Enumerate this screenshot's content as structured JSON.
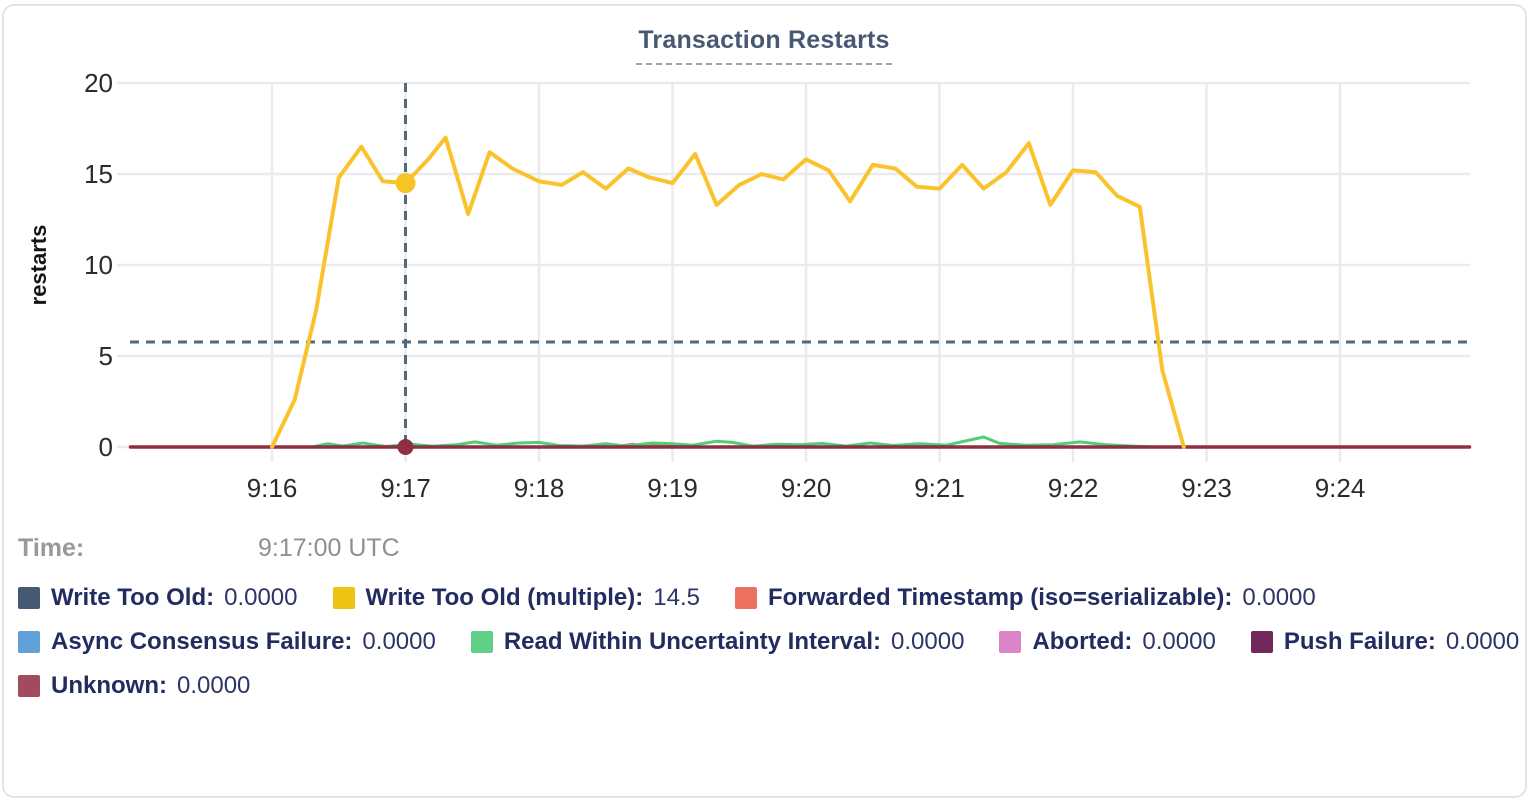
{
  "title": "Transaction Restarts",
  "time_row": {
    "label": "Time:",
    "value": "9:17:00 UTC"
  },
  "legend": {
    "items": [
      {
        "label": "Write Too Old:",
        "value": "0.0000",
        "color": "#475872"
      },
      {
        "label": "Write Too Old (multiple):",
        "value": "14.5",
        "color": "#f0c214"
      },
      {
        "label": "Forwarded Timestamp (iso=serializable):",
        "value": "0.0000",
        "color": "#ed7160"
      },
      {
        "label": "Async Consensus Failure:",
        "value": "0.0000",
        "color": "#61a0d9"
      },
      {
        "label": "Read Within Uncertainty Interval:",
        "value": "0.0000",
        "color": "#60d088"
      },
      {
        "label": "Aborted:",
        "value": "0.0000",
        "color": "#db84c8"
      },
      {
        "label": "Push Failure:",
        "value": "0.0000",
        "color": "#71295c"
      },
      {
        "label": "Unknown:",
        "value": "0.0000",
        "color": "#a34a5e"
      }
    ]
  },
  "chart_data": {
    "type": "line",
    "title": "Transaction Restarts",
    "ylabel": "restarts",
    "ylim": [
      0,
      20
    ],
    "yticks": [
      {
        "v": 20,
        "label": "20"
      },
      {
        "v": 15,
        "label": "15"
      },
      {
        "v": 10,
        "label": "10"
      },
      {
        "v": 5,
        "label": "5"
      },
      {
        "v": 0,
        "label": "0"
      }
    ],
    "xticks": [
      {
        "t": 16,
        "label": "9:16"
      },
      {
        "t": 17,
        "label": "9:17"
      },
      {
        "t": 18,
        "label": "9:18"
      },
      {
        "t": 19,
        "label": "9:19"
      },
      {
        "t": 20,
        "label": "9:20"
      },
      {
        "t": 21,
        "label": "9:21"
      },
      {
        "t": 22,
        "label": "9:22"
      },
      {
        "t": 23,
        "label": "9:23"
      },
      {
        "t": 24,
        "label": "9:24"
      }
    ],
    "x_domain_minutes": [
      14.94,
      24.97
    ],
    "grid": true,
    "legend_position": "bottom",
    "hover": {
      "time": "9:17:00 UTC",
      "t": 17.0,
      "crosshair_color": "#4e6a80",
      "h_line_value": 5.77,
      "points": [
        {
          "series": "Write Too Old (multiple)",
          "v": 14.5,
          "color": "#f5c523"
        },
        {
          "series": "Unknown",
          "v": 0,
          "color": "#8e2f42"
        }
      ]
    },
    "series": [
      {
        "name": "Write Too Old",
        "color": "#475872",
        "points": [
          [
            14.94,
            0
          ],
          [
            24.97,
            0
          ]
        ]
      },
      {
        "name": "Async Consensus Failure",
        "color": "#61a0d9",
        "points": [
          [
            14.94,
            0
          ],
          [
            24.97,
            0
          ]
        ]
      },
      {
        "name": "Aborted",
        "color": "#db84c8",
        "points": [
          [
            14.94,
            0
          ],
          [
            24.97,
            0
          ]
        ]
      },
      {
        "name": "Push Failure",
        "color": "#71295c",
        "points": [
          [
            14.94,
            0
          ],
          [
            24.97,
            0
          ]
        ]
      },
      {
        "name": "Forwarded Timestamp (iso=serializable)",
        "color": "#ed7160",
        "points": [
          [
            14.94,
            0
          ],
          [
            18.55,
            0
          ],
          [
            18.7,
            0.15
          ],
          [
            18.82,
            0.04
          ],
          [
            18.95,
            0.12
          ],
          [
            19.1,
            0
          ],
          [
            24.97,
            0
          ]
        ]
      },
      {
        "name": "Read Within Uncertainty Interval",
        "color": "#4fce78",
        "points": [
          [
            14.94,
            0
          ],
          [
            16.3,
            0
          ],
          [
            16.42,
            0.18
          ],
          [
            16.53,
            0.05
          ],
          [
            16.68,
            0.22
          ],
          [
            16.85,
            0.03
          ],
          [
            17.05,
            0.15
          ],
          [
            17.2,
            0.04
          ],
          [
            17.38,
            0.12
          ],
          [
            17.52,
            0.28
          ],
          [
            17.68,
            0.1
          ],
          [
            17.85,
            0.22
          ],
          [
            18.0,
            0.25
          ],
          [
            18.15,
            0.08
          ],
          [
            18.33,
            0.05
          ],
          [
            18.5,
            0.18
          ],
          [
            18.65,
            0.05
          ],
          [
            18.85,
            0.22
          ],
          [
            19.0,
            0.18
          ],
          [
            19.15,
            0.1
          ],
          [
            19.33,
            0.32
          ],
          [
            19.45,
            0.25
          ],
          [
            19.6,
            0.05
          ],
          [
            19.78,
            0.15
          ],
          [
            19.95,
            0.12
          ],
          [
            20.12,
            0.2
          ],
          [
            20.3,
            0.05
          ],
          [
            20.48,
            0.22
          ],
          [
            20.65,
            0.08
          ],
          [
            20.85,
            0.18
          ],
          [
            21.05,
            0.1
          ],
          [
            21.33,
            0.55
          ],
          [
            21.45,
            0.2
          ],
          [
            21.65,
            0.1
          ],
          [
            21.85,
            0.12
          ],
          [
            22.05,
            0.28
          ],
          [
            22.25,
            0.12
          ],
          [
            22.45,
            0.05
          ],
          [
            22.6,
            0
          ],
          [
            24.97,
            0
          ]
        ]
      },
      {
        "name": "Unknown",
        "color": "#8e2f42",
        "points": [
          [
            14.94,
            0
          ],
          [
            24.97,
            0
          ]
        ]
      },
      {
        "name": "Write Too Old (multiple)",
        "color": "#fac32e",
        "points": [
          [
            16.0,
            0
          ],
          [
            16.17,
            2.6
          ],
          [
            16.33,
            7.5
          ],
          [
            16.5,
            14.8
          ],
          [
            16.67,
            16.5
          ],
          [
            16.83,
            14.6
          ],
          [
            17.0,
            14.5
          ],
          [
            17.17,
            15.8
          ],
          [
            17.3,
            17.0
          ],
          [
            17.47,
            12.8
          ],
          [
            17.63,
            16.2
          ],
          [
            17.8,
            15.3
          ],
          [
            18.0,
            14.6
          ],
          [
            18.17,
            14.4
          ],
          [
            18.33,
            15.1
          ],
          [
            18.5,
            14.2
          ],
          [
            18.67,
            15.3
          ],
          [
            18.83,
            14.8
          ],
          [
            19.0,
            14.5
          ],
          [
            19.17,
            16.1
          ],
          [
            19.33,
            13.3
          ],
          [
            19.5,
            14.4
          ],
          [
            19.67,
            15.0
          ],
          [
            19.83,
            14.7
          ],
          [
            20.0,
            15.8
          ],
          [
            20.17,
            15.2
          ],
          [
            20.33,
            13.5
          ],
          [
            20.5,
            15.5
          ],
          [
            20.67,
            15.3
          ],
          [
            20.83,
            14.3
          ],
          [
            21.0,
            14.2
          ],
          [
            21.17,
            15.5
          ],
          [
            21.33,
            14.2
          ],
          [
            21.5,
            15.1
          ],
          [
            21.67,
            16.7
          ],
          [
            21.83,
            13.3
          ],
          [
            22.0,
            15.2
          ],
          [
            22.17,
            15.1
          ],
          [
            22.33,
            13.8
          ],
          [
            22.5,
            13.2
          ],
          [
            22.67,
            4.2
          ],
          [
            22.83,
            0
          ]
        ]
      }
    ]
  }
}
